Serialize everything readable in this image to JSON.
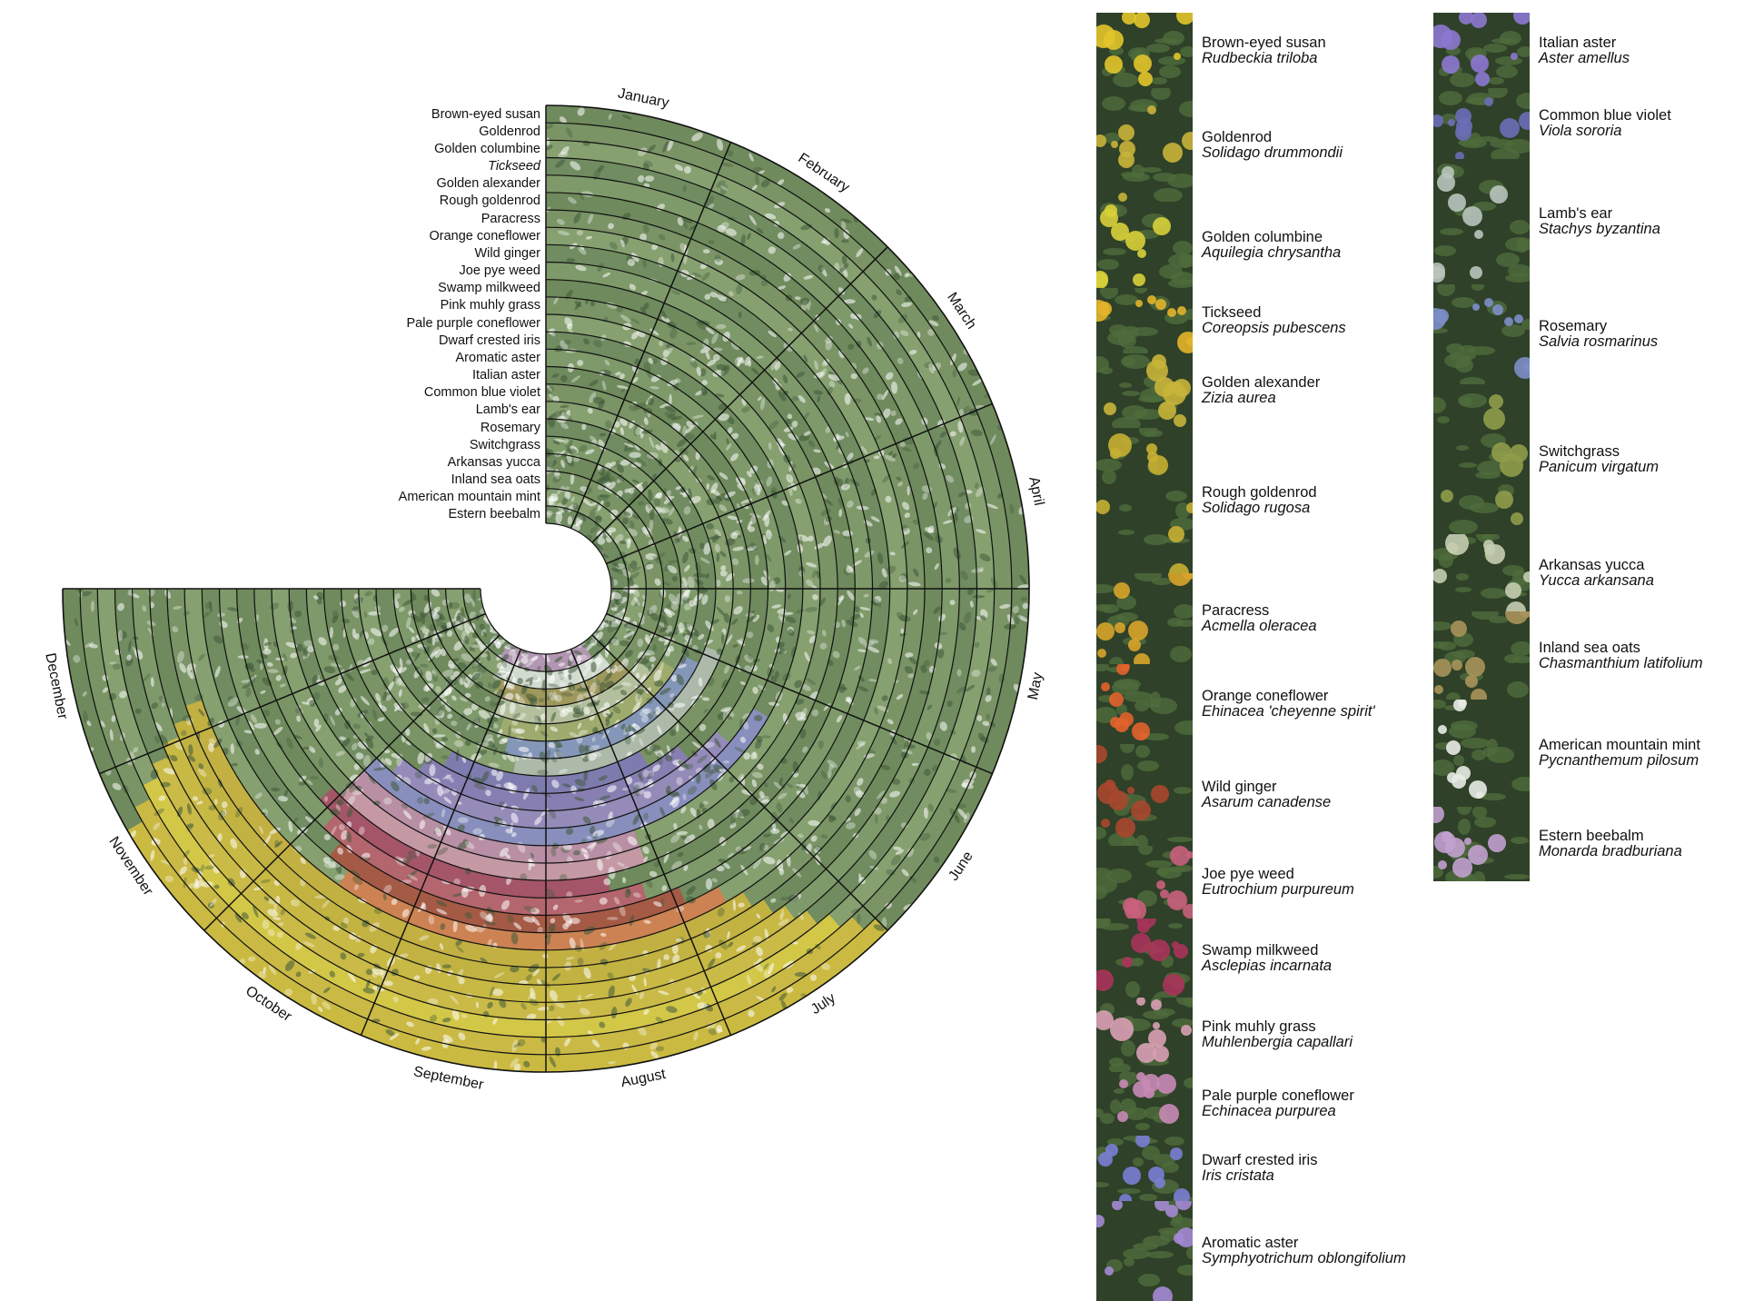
{
  "months": [
    "January",
    "February",
    "March",
    "April",
    "May",
    "June",
    "July",
    "August",
    "September",
    "October",
    "November",
    "December"
  ],
  "rings": [
    {
      "name": "Brown-eyed susan",
      "italic": false,
      "bloom": [],
      "color": "#e6c83a"
    },
    {
      "name": "Goldenrod",
      "italic": false,
      "bloom": [],
      "color": "#e0c43c"
    },
    {
      "name": "Golden columbine",
      "italic": false,
      "bloom": [],
      "color": "#e9d23e"
    },
    {
      "name": "Tickseed",
      "italic": true,
      "bloom": [],
      "color": "#e4c640"
    },
    {
      "name": "Golden alexander",
      "italic": false,
      "bloom": [],
      "color": "#dcc23a"
    },
    {
      "name": "Rough goldenrod",
      "italic": false,
      "bloom": [],
      "color": "#d9be3a"
    },
    {
      "name": "Paracress",
      "italic": false,
      "bloom": [],
      "color": "#d7b83a"
    },
    {
      "name": "Orange coneflower",
      "italic": false,
      "bloom": [],
      "color": "#e07a4a"
    },
    {
      "name": "Wild ginger",
      "italic": false,
      "bloom": [],
      "color": "#b34b3e"
    },
    {
      "name": "Joe pye weed",
      "italic": false,
      "bloom": [],
      "color": "#c25770"
    },
    {
      "name": "Swamp milkweed",
      "italic": false,
      "bloom": [],
      "color": "#b3476a"
    },
    {
      "name": "Pink muhly grass",
      "italic": false,
      "bloom": [],
      "color": "#d99bb6"
    },
    {
      "name": "Pale purple coneflower",
      "italic": false,
      "bloom": [],
      "color": "#c78ab4"
    },
    {
      "name": "Dwarf crested iris",
      "italic": false,
      "bloom": [],
      "color": "#8f8fd6"
    },
    {
      "name": "Aromatic aster",
      "italic": false,
      "bloom": [],
      "color": "#9a86cf"
    },
    {
      "name": "Italian aster",
      "italic": false,
      "bloom": [],
      "color": "#8e7cc9"
    },
    {
      "name": "Common blue violet",
      "italic": false,
      "bloom": [],
      "color": "#7f76c4"
    },
    {
      "name": "Lamb's ear",
      "italic": false,
      "bloom": [],
      "color": "#b8c2bb"
    },
    {
      "name": "Rosemary",
      "italic": false,
      "bloom": [],
      "color": "#8c9ad1"
    },
    {
      "name": "Switchgrass",
      "italic": false,
      "bloom": [],
      "color": "#a6b070"
    },
    {
      "name": "Arkansas yucca",
      "italic": false,
      "bloom": [],
      "color": "#c8d0b0"
    },
    {
      "name": "Inland sea oats",
      "italic": false,
      "bloom": [],
      "color": "#a89a5a"
    },
    {
      "name": "American mountain mint",
      "italic": false,
      "bloom": [],
      "color": "#e8ecea"
    },
    {
      "name": "Estern beebalm",
      "italic": false,
      "bloom": [],
      "color": "#c59ac9"
    }
  ],
  "legend": {
    "column1": [
      {
        "common": "Brown-eyed susan",
        "scientific": "Rudbeckia triloba",
        "photo": "yellow-daisy-photo",
        "color": "#e2c52a"
      },
      {
        "common": "Goldenrod",
        "scientific": "Solidago drummondii",
        "photo": "yellow-plume-photo",
        "color": "#c9b23a"
      },
      {
        "common": "Golden columbine",
        "scientific": "Aquilegia chrysantha",
        "photo": "yellow-columbine-photo",
        "color": "#d8d03a"
      },
      {
        "common": "Tickseed",
        "scientific": "Coreopsis pubescens",
        "photo": "yellow-flower-photo",
        "color": "#e3b42a"
      },
      {
        "common": "Golden alexander",
        "scientific": "Zizia aurea",
        "photo": "yellow-umbel-photo",
        "color": "#c8b43a"
      },
      {
        "common": "Rough goldenrod",
        "scientific": "Solidago rugosa",
        "photo": "yellow-plume-photo",
        "color": "#c8b032"
      },
      {
        "common": "Paracress",
        "scientific": "Acmella oleracea",
        "photo": "yellow-button-photo",
        "color": "#d8a42a"
      },
      {
        "common": "Orange coneflower",
        "scientific": "Ehinacea 'cheyenne spirit'",
        "photo": "orange-coneflower-photo",
        "color": "#e2632c"
      },
      {
        "common": "Wild ginger",
        "scientific": "Asarum canadense",
        "photo": "wild-ginger-photo",
        "color": "#a8472e"
      },
      {
        "common": "Joe pye weed",
        "scientific": "Eutrochium purpureum",
        "photo": "pink-cluster-photo",
        "color": "#c9607c"
      },
      {
        "common": "Swamp milkweed",
        "scientific": "Asclepias incarnata",
        "photo": "magenta-cluster-photo",
        "color": "#a8345a"
      },
      {
        "common": "Pink muhly grass",
        "scientific": "Muhlenbergia capallari",
        "photo": "pink-grass-photo",
        "color": "#d9a0b4"
      },
      {
        "common": "Pale purple coneflower",
        "scientific": "Echinacea purpurea",
        "photo": "purple-coneflower-photo",
        "color": "#c98ab6"
      },
      {
        "common": "Dwarf crested iris",
        "scientific": "Iris cristata",
        "photo": "blue-iris-photo",
        "color": "#7a7ed2"
      },
      {
        "common": "Aromatic aster",
        "scientific": "Symphyotrichum oblongifolium",
        "photo": "purple-aster-photo",
        "color": "#a48ad4"
      }
    ],
    "column2": [
      {
        "common": "Italian aster",
        "scientific": "Aster amellus",
        "photo": "purple-aster-photo",
        "color": "#8c78d0"
      },
      {
        "common": "Common blue violet",
        "scientific": "Viola sororia",
        "photo": "violet-photo",
        "color": "#6b6eb8"
      },
      {
        "common": "Lamb's ear",
        "scientific": "Stachys byzantina",
        "photo": "silver-leaf-photo",
        "color": "#b8c4bc"
      },
      {
        "common": "Rosemary",
        "scientific": "Salvia rosmarinus",
        "photo": "rosemary-photo",
        "color": "#7d8ec8"
      },
      {
        "common": "Switchgrass",
        "scientific": "Panicum virgatum",
        "photo": "grass-photo",
        "color": "#8f9c4a"
      },
      {
        "common": "Arkansas yucca",
        "scientific": "Yucca arkansana",
        "photo": "yucca-photo",
        "color": "#c5cdb0"
      },
      {
        "common": "Inland sea oats",
        "scientific": "Chasmanthium latifolium",
        "photo": "sea-oats-photo",
        "color": "#a8935a"
      },
      {
        "common": "American mountain mint",
        "scientific": "Pycnanthemum pilosum",
        "photo": "white-flower-photo",
        "color": "#e8ebe4"
      },
      {
        "common": "Estern beebalm",
        "scientific": "Monarda bradburiana",
        "photo": "beebalm-photo",
        "color": "#c2a0cf"
      }
    ]
  }
}
